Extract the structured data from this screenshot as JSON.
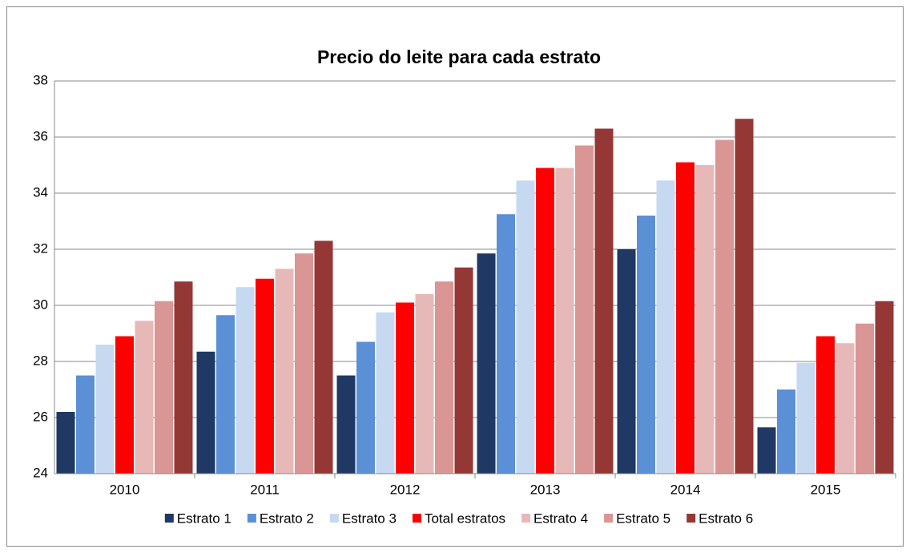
{
  "chart_data": {
    "type": "bar",
    "title": "Precio do leite para cada estrato",
    "categories": [
      "2010",
      "2011",
      "2012",
      "2013",
      "2014",
      "2015"
    ],
    "series": [
      {
        "name": "Estrato 1",
        "color": "#1f3864",
        "values": [
          26.2,
          28.35,
          27.5,
          31.85,
          32.0,
          25.65
        ]
      },
      {
        "name": "Estrato 2",
        "color": "#5b8fd6",
        "values": [
          27.5,
          29.65,
          28.7,
          33.25,
          33.2,
          27.0
        ]
      },
      {
        "name": "Estrato 3",
        "color": "#c6d9f1",
        "values": [
          28.6,
          30.65,
          29.75,
          34.45,
          34.45,
          27.95
        ]
      },
      {
        "name": "Total estratos",
        "color": "#ff0000",
        "values": [
          28.9,
          30.95,
          30.1,
          34.9,
          35.1,
          28.9
        ]
      },
      {
        "name": "Estrato 4",
        "color": "#e6b9b8",
        "values": [
          29.45,
          31.3,
          30.4,
          34.9,
          35.0,
          28.65
        ]
      },
      {
        "name": "Estrato 5",
        "color": "#d99694",
        "values": [
          30.15,
          31.85,
          30.85,
          35.7,
          35.9,
          29.35
        ]
      },
      {
        "name": "Estrato 6",
        "color": "#953735",
        "values": [
          30.85,
          32.3,
          31.35,
          36.3,
          36.65,
          30.15
        ]
      }
    ],
    "ylim": [
      24,
      38
    ],
    "yticks": [
      24,
      26,
      28,
      30,
      32,
      34,
      36,
      38
    ],
    "grid": true,
    "legend": "bottom"
  }
}
